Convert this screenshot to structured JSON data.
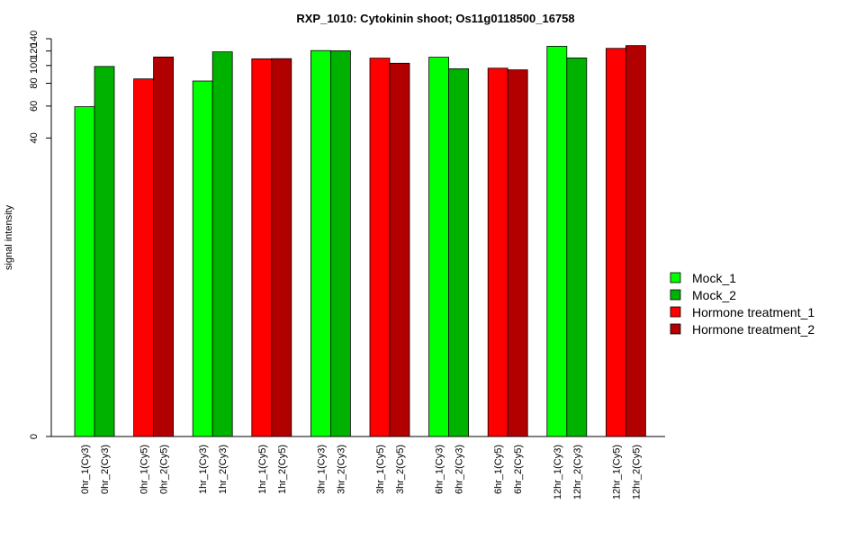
{
  "chart_data": {
    "type": "bar",
    "title": "RXP_1010: Cytokinin shoot; Os11g0118500_16758",
    "xlabel": "",
    "ylabel": "signal intensity",
    "y_scale": "log",
    "ylim": [
      0,
      140
    ],
    "y_ticks": [
      0,
      40,
      60,
      80,
      100,
      120,
      140
    ],
    "legend_position": "right",
    "series": [
      {
        "name": "Mock_1",
        "color": "#00ff00"
      },
      {
        "name": "Mock_2",
        "color": "#00b200"
      },
      {
        "name": "Hormone treatment_1",
        "color": "#ff0000"
      },
      {
        "name": "Hormone treatment_2",
        "color": "#b20000"
      }
    ],
    "bars": [
      {
        "label": "0hr_1(Cy3)",
        "value": 59.5,
        "series": 0
      },
      {
        "label": "0hr_2(Cy3)",
        "value": 98.8,
        "series": 1
      },
      {
        "label": "0hr_1(Cy5)",
        "value": 84.5,
        "series": 2
      },
      {
        "label": "0hr_2(Cy5)",
        "value": 111.3,
        "series": 3
      },
      {
        "label": "1hr_1(Cy3)",
        "value": 82.3,
        "series": 0
      },
      {
        "label": "1hr_2(Cy3)",
        "value": 118.7,
        "series": 1
      },
      {
        "label": "1hr_1(Cy5)",
        "value": 108.8,
        "series": 2
      },
      {
        "label": "1hr_2(Cy5)",
        "value": 109.0,
        "series": 3
      },
      {
        "label": "3hr_1(Cy3)",
        "value": 120.6,
        "series": 0
      },
      {
        "label": "3hr_2(Cy3)",
        "value": 120.3,
        "series": 1
      },
      {
        "label": "3hr_1(Cy5)",
        "value": 109.7,
        "series": 2
      },
      {
        "label": "3hr_2(Cy5)",
        "value": 102.9,
        "series": 3
      },
      {
        "label": "6hr_1(Cy3)",
        "value": 111.0,
        "series": 0
      },
      {
        "label": "6hr_2(Cy3)",
        "value": 96.0,
        "series": 1
      },
      {
        "label": "6hr_1(Cy5)",
        "value": 96.7,
        "series": 2
      },
      {
        "label": "6hr_2(Cy5)",
        "value": 94.7,
        "series": 3
      },
      {
        "label": "12hr_1(Cy3)",
        "value": 127.3,
        "series": 0
      },
      {
        "label": "12hr_2(Cy3)",
        "value": 110.0,
        "series": 1
      },
      {
        "label": "12hr_1(Cy5)",
        "value": 124.0,
        "series": 2
      },
      {
        "label": "12hr_2(Cy5)",
        "value": 128.4,
        "series": 3
      }
    ]
  }
}
